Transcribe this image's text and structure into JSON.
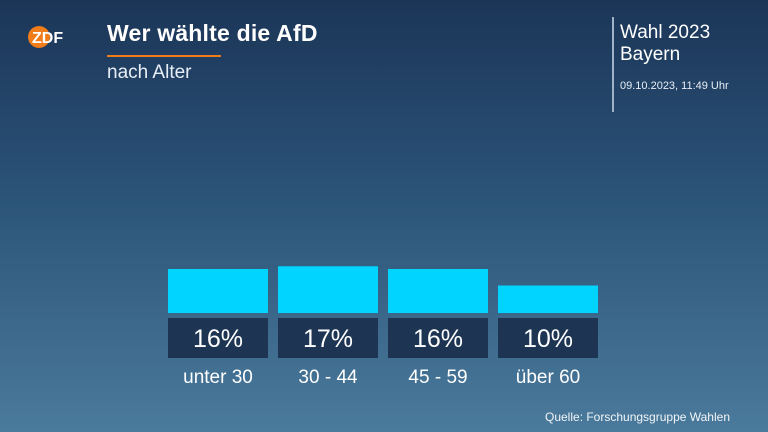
{
  "header": {
    "logo_text": "ZDF",
    "title": "Wer wählte die AfD",
    "subtitle": "nach Alter",
    "election": "Wahl 2023",
    "region": "Bayern",
    "timestamp": "09.10.2023, 11:49 Uhr"
  },
  "footer": {
    "source": "Quelle: Forschungsgruppe Wahlen"
  },
  "colors": {
    "bar": "#00d4ff",
    "label_box": "#1d3553",
    "accent": "#f07d19"
  },
  "chart_data": {
    "type": "bar",
    "title": "Wer wählte die AfD",
    "subtitle": "nach Alter",
    "categories": [
      "unter 30",
      "30 - 44",
      "45 - 59",
      "über 60"
    ],
    "values": [
      16,
      17,
      16,
      10
    ],
    "value_labels": [
      "16%",
      "17%",
      "16%",
      "10%"
    ],
    "unit": "%",
    "grid": false,
    "legend": "none"
  }
}
